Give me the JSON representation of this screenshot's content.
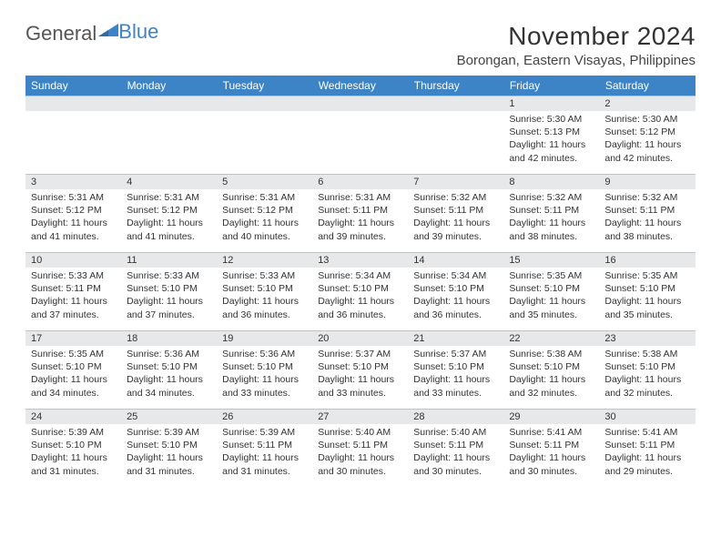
{
  "colors": {
    "header_bg": "#3d84c6",
    "header_text": "#ffffff",
    "daynum_bg": "#e7e8e9",
    "border": "#bfc3c7",
    "text": "#333333",
    "logo_gray": "#555555",
    "logo_blue": "#3d84c6",
    "background": "#ffffff"
  },
  "typography": {
    "title_fontsize": 28,
    "location_fontsize": 15,
    "dayheader_fontsize": 12,
    "cell_fontsize": 10.5
  },
  "logo": {
    "word1": "General",
    "word2": "Blue"
  },
  "title": "November 2024",
  "location": "Borongan, Eastern Visayas, Philippines",
  "dayHeaders": [
    "Sunday",
    "Monday",
    "Tuesday",
    "Wednesday",
    "Thursday",
    "Friday",
    "Saturday"
  ],
  "weeks": [
    [
      null,
      null,
      null,
      null,
      null,
      {
        "num": "1",
        "sunrise": "Sunrise: 5:30 AM",
        "sunset": "Sunset: 5:13 PM",
        "daylight": "Daylight: 11 hours and 42 minutes."
      },
      {
        "num": "2",
        "sunrise": "Sunrise: 5:30 AM",
        "sunset": "Sunset: 5:12 PM",
        "daylight": "Daylight: 11 hours and 42 minutes."
      }
    ],
    [
      {
        "num": "3",
        "sunrise": "Sunrise: 5:31 AM",
        "sunset": "Sunset: 5:12 PM",
        "daylight": "Daylight: 11 hours and 41 minutes."
      },
      {
        "num": "4",
        "sunrise": "Sunrise: 5:31 AM",
        "sunset": "Sunset: 5:12 PM",
        "daylight": "Daylight: 11 hours and 41 minutes."
      },
      {
        "num": "5",
        "sunrise": "Sunrise: 5:31 AM",
        "sunset": "Sunset: 5:12 PM",
        "daylight": "Daylight: 11 hours and 40 minutes."
      },
      {
        "num": "6",
        "sunrise": "Sunrise: 5:31 AM",
        "sunset": "Sunset: 5:11 PM",
        "daylight": "Daylight: 11 hours and 39 minutes."
      },
      {
        "num": "7",
        "sunrise": "Sunrise: 5:32 AM",
        "sunset": "Sunset: 5:11 PM",
        "daylight": "Daylight: 11 hours and 39 minutes."
      },
      {
        "num": "8",
        "sunrise": "Sunrise: 5:32 AM",
        "sunset": "Sunset: 5:11 PM",
        "daylight": "Daylight: 11 hours and 38 minutes."
      },
      {
        "num": "9",
        "sunrise": "Sunrise: 5:32 AM",
        "sunset": "Sunset: 5:11 PM",
        "daylight": "Daylight: 11 hours and 38 minutes."
      }
    ],
    [
      {
        "num": "10",
        "sunrise": "Sunrise: 5:33 AM",
        "sunset": "Sunset: 5:11 PM",
        "daylight": "Daylight: 11 hours and 37 minutes."
      },
      {
        "num": "11",
        "sunrise": "Sunrise: 5:33 AM",
        "sunset": "Sunset: 5:10 PM",
        "daylight": "Daylight: 11 hours and 37 minutes."
      },
      {
        "num": "12",
        "sunrise": "Sunrise: 5:33 AM",
        "sunset": "Sunset: 5:10 PM",
        "daylight": "Daylight: 11 hours and 36 minutes."
      },
      {
        "num": "13",
        "sunrise": "Sunrise: 5:34 AM",
        "sunset": "Sunset: 5:10 PM",
        "daylight": "Daylight: 11 hours and 36 minutes."
      },
      {
        "num": "14",
        "sunrise": "Sunrise: 5:34 AM",
        "sunset": "Sunset: 5:10 PM",
        "daylight": "Daylight: 11 hours and 36 minutes."
      },
      {
        "num": "15",
        "sunrise": "Sunrise: 5:35 AM",
        "sunset": "Sunset: 5:10 PM",
        "daylight": "Daylight: 11 hours and 35 minutes."
      },
      {
        "num": "16",
        "sunrise": "Sunrise: 5:35 AM",
        "sunset": "Sunset: 5:10 PM",
        "daylight": "Daylight: 11 hours and 35 minutes."
      }
    ],
    [
      {
        "num": "17",
        "sunrise": "Sunrise: 5:35 AM",
        "sunset": "Sunset: 5:10 PM",
        "daylight": "Daylight: 11 hours and 34 minutes."
      },
      {
        "num": "18",
        "sunrise": "Sunrise: 5:36 AM",
        "sunset": "Sunset: 5:10 PM",
        "daylight": "Daylight: 11 hours and 34 minutes."
      },
      {
        "num": "19",
        "sunrise": "Sunrise: 5:36 AM",
        "sunset": "Sunset: 5:10 PM",
        "daylight": "Daylight: 11 hours and 33 minutes."
      },
      {
        "num": "20",
        "sunrise": "Sunrise: 5:37 AM",
        "sunset": "Sunset: 5:10 PM",
        "daylight": "Daylight: 11 hours and 33 minutes."
      },
      {
        "num": "21",
        "sunrise": "Sunrise: 5:37 AM",
        "sunset": "Sunset: 5:10 PM",
        "daylight": "Daylight: 11 hours and 33 minutes."
      },
      {
        "num": "22",
        "sunrise": "Sunrise: 5:38 AM",
        "sunset": "Sunset: 5:10 PM",
        "daylight": "Daylight: 11 hours and 32 minutes."
      },
      {
        "num": "23",
        "sunrise": "Sunrise: 5:38 AM",
        "sunset": "Sunset: 5:10 PM",
        "daylight": "Daylight: 11 hours and 32 minutes."
      }
    ],
    [
      {
        "num": "24",
        "sunrise": "Sunrise: 5:39 AM",
        "sunset": "Sunset: 5:10 PM",
        "daylight": "Daylight: 11 hours and 31 minutes."
      },
      {
        "num": "25",
        "sunrise": "Sunrise: 5:39 AM",
        "sunset": "Sunset: 5:10 PM",
        "daylight": "Daylight: 11 hours and 31 minutes."
      },
      {
        "num": "26",
        "sunrise": "Sunrise: 5:39 AM",
        "sunset": "Sunset: 5:11 PM",
        "daylight": "Daylight: 11 hours and 31 minutes."
      },
      {
        "num": "27",
        "sunrise": "Sunrise: 5:40 AM",
        "sunset": "Sunset: 5:11 PM",
        "daylight": "Daylight: 11 hours and 30 minutes."
      },
      {
        "num": "28",
        "sunrise": "Sunrise: 5:40 AM",
        "sunset": "Sunset: 5:11 PM",
        "daylight": "Daylight: 11 hours and 30 minutes."
      },
      {
        "num": "29",
        "sunrise": "Sunrise: 5:41 AM",
        "sunset": "Sunset: 5:11 PM",
        "daylight": "Daylight: 11 hours and 30 minutes."
      },
      {
        "num": "30",
        "sunrise": "Sunrise: 5:41 AM",
        "sunset": "Sunset: 5:11 PM",
        "daylight": "Daylight: 11 hours and 29 minutes."
      }
    ]
  ]
}
